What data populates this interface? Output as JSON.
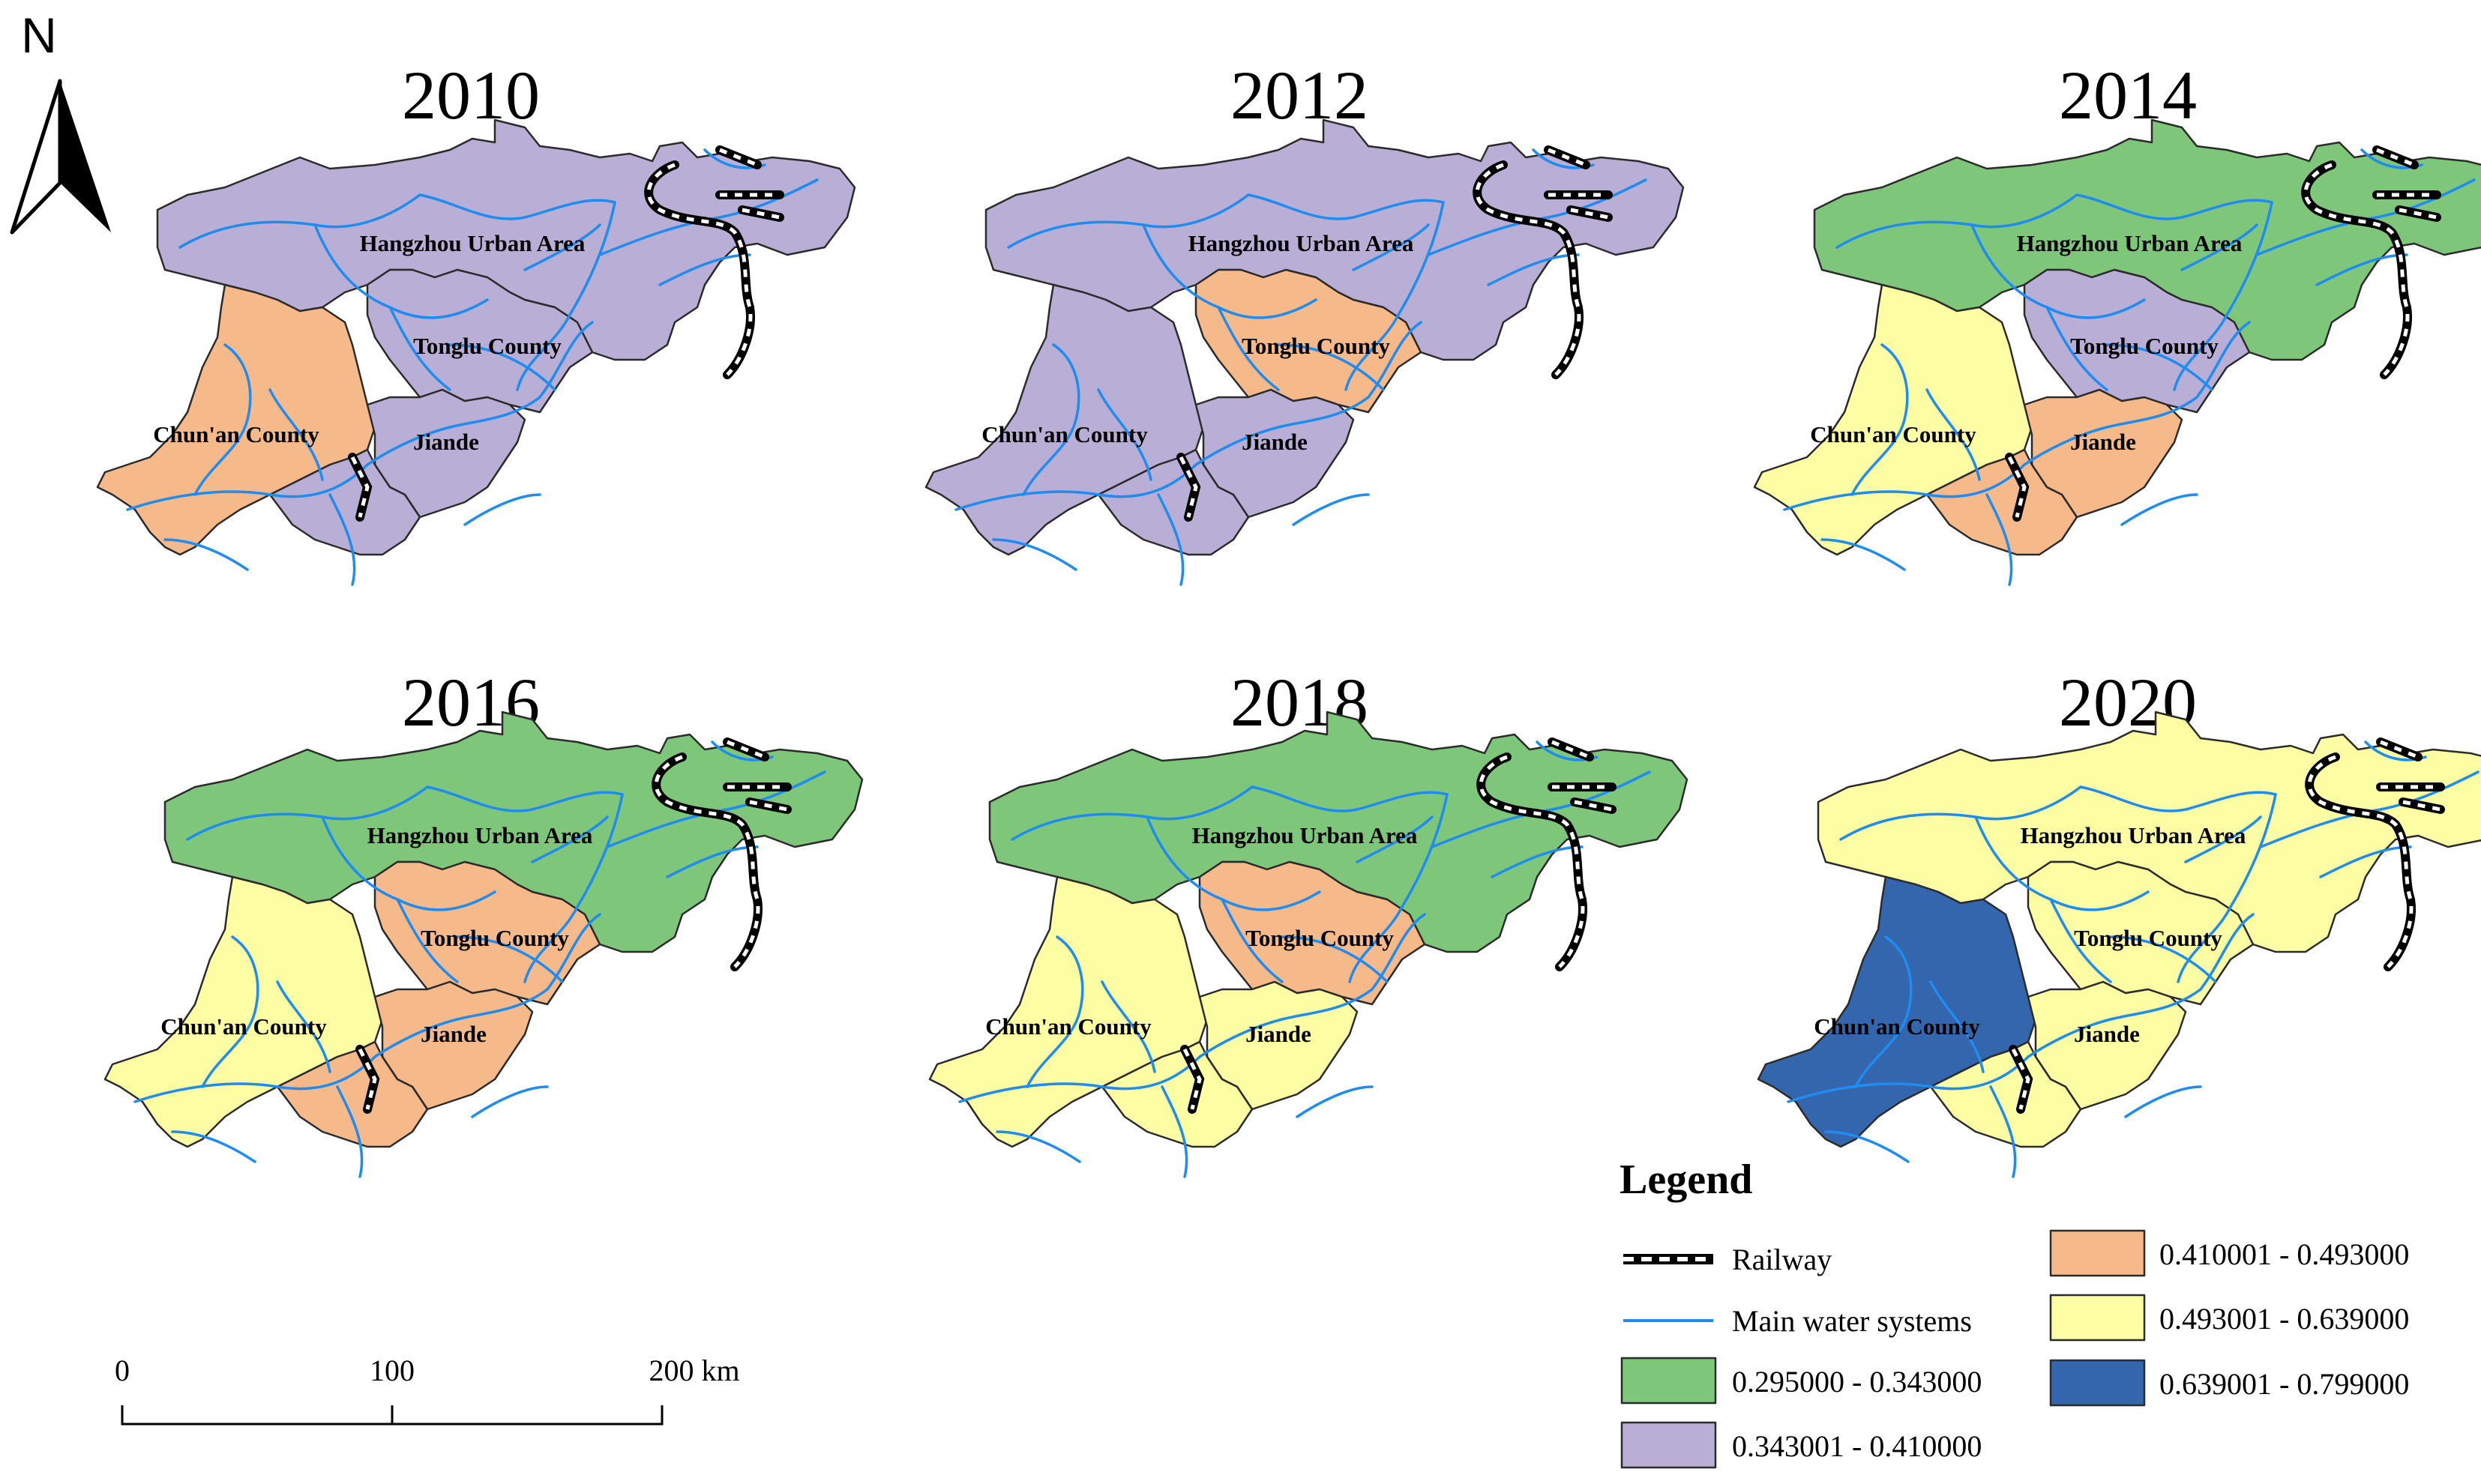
{
  "north_arrow": {
    "label": "N"
  },
  "regions": {
    "hangzhou": "Hangzhou Urban Area",
    "tonglu": "Tonglu County",
    "chunan": "Chun'an County",
    "jiande": "Jiande"
  },
  "classes": [
    {
      "id": "c1",
      "range": "0.295000 - 0.343000",
      "color": "#7dc67a"
    },
    {
      "id": "c2",
      "range": "0.343001 - 0.410000",
      "color": "#b9aed5"
    },
    {
      "id": "c3",
      "range": "0.410001 - 0.493000",
      "color": "#f6b989"
    },
    {
      "id": "c4",
      "range": "0.493001 - 0.639000",
      "color": "#fdfda3"
    },
    {
      "id": "c5",
      "range": "0.639001 - 0.799000",
      "color": "#3466ad"
    }
  ],
  "panels": [
    {
      "year": "2010",
      "hangzhou": "c2",
      "tonglu": "c2",
      "chunan": "c3",
      "jiande": "c2",
      "jiande_south": "c2"
    },
    {
      "year": "2012",
      "hangzhou": "c2",
      "tonglu": "c3",
      "chunan": "c2",
      "jiande": "c2",
      "jiande_south": "c2"
    },
    {
      "year": "2014",
      "hangzhou": "c1",
      "tonglu": "c2",
      "chunan": "c4",
      "jiande": "c3",
      "jiande_south": "c3"
    },
    {
      "year": "2016",
      "hangzhou": "c1",
      "tonglu": "c3",
      "chunan": "c4",
      "jiande": "c3",
      "jiande_south": "c3"
    },
    {
      "year": "2018",
      "hangzhou": "c1",
      "tonglu": "c3",
      "chunan": "c4",
      "jiande": "c4",
      "jiande_south": "c4"
    },
    {
      "year": "2020",
      "hangzhou": "c4",
      "tonglu": "c4",
      "chunan": "c5",
      "jiande": "c4",
      "jiande_south": "c4"
    }
  ],
  "legend": {
    "title": "Legend",
    "railway": "Railway",
    "water": "Main water systems",
    "railway_color": "#000000",
    "water_color": "#1f8cf2"
  },
  "scale_bar": {
    "ticks": [
      "0",
      "100",
      "200 km"
    ]
  }
}
